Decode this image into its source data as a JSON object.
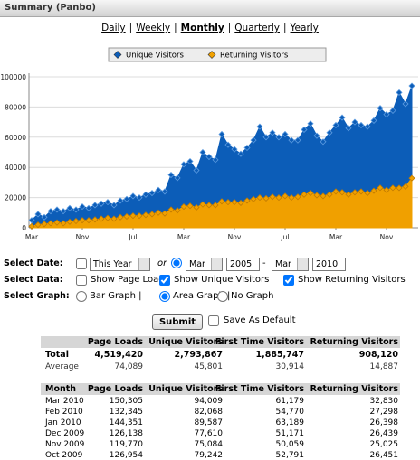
{
  "header": {
    "title": "Summary (Panbo)"
  },
  "period_links": {
    "items": [
      "Daily",
      "Weekly",
      "Monthly",
      "Quarterly",
      "Yearly"
    ],
    "separator": "|",
    "active": 2
  },
  "chart_data": {
    "type": "area",
    "categories": [
      "Mar",
      null,
      null,
      null,
      null,
      null,
      null,
      null,
      "Nov",
      null,
      null,
      null,
      null,
      null,
      null,
      null,
      "Jul",
      null,
      null,
      null,
      null,
      null,
      null,
      null,
      "Mar",
      null,
      null,
      null,
      null,
      null,
      null,
      null,
      "Nov",
      null,
      null,
      null,
      null,
      null,
      null,
      null,
      "Jul",
      null,
      null,
      null,
      null,
      null,
      null,
      null,
      "Mar",
      null,
      null,
      null,
      null,
      null,
      null,
      null,
      "Nov",
      null,
      null,
      null,
      null
    ],
    "series": [
      {
        "name": "Unique Visitors",
        "color": "#0c5db8",
        "values": [
          5000,
          9000,
          7000,
          11000,
          12000,
          11000,
          13000,
          12000,
          14000,
          13000,
          15000,
          16000,
          17000,
          15000,
          18000,
          19000,
          21000,
          20000,
          22000,
          23000,
          25000,
          24000,
          35000,
          33000,
          42000,
          44000,
          38000,
          50000,
          47000,
          45000,
          62000,
          55000,
          52000,
          49000,
          53000,
          58000,
          67000,
          60000,
          63000,
          60000,
          62000,
          58000,
          58000,
          65000,
          69000,
          61000,
          57000,
          63000,
          68000,
          73000,
          66000,
          70000,
          68000,
          67000,
          71000,
          79242,
          75084,
          77610,
          89587,
          82068,
          94009
        ]
      },
      {
        "name": "Returning Visitors",
        "color": "#f0a000",
        "values": [
          1000,
          2000,
          2500,
          3000,
          3500,
          3000,
          4000,
          4500,
          5000,
          5000,
          5500,
          6000,
          6500,
          6000,
          7000,
          7500,
          8000,
          8000,
          8500,
          9000,
          10000,
          9500,
          12000,
          11500,
          14000,
          14500,
          13500,
          15500,
          15000,
          15000,
          17500,
          17000,
          17000,
          16500,
          18000,
          19000,
          20000,
          19500,
          20500,
          20000,
          21000,
          20000,
          20500,
          22000,
          23000,
          21500,
          21000,
          22000,
          24000,
          23500,
          22000,
          23500,
          24000,
          23000,
          24500,
          26451,
          25025,
          26439,
          26398,
          27298,
          32830
        ]
      }
    ],
    "ylim": [
      0,
      100000
    ],
    "yticks": [
      0,
      20000,
      40000,
      60000,
      80000,
      100000
    ],
    "grid": true,
    "legend": "top"
  },
  "form": {
    "date_label": "Select Date:",
    "range_checked": false,
    "range_value": "This Year",
    "or": "or",
    "custom_checked": true,
    "from_month": "Mar",
    "from_year": "2005",
    "dash": "-",
    "to_month": "Mar",
    "to_year": "2010",
    "data_label": "Select Data:",
    "data_options": [
      {
        "label": "Show Page Loads",
        "checked": false
      },
      {
        "label": "Show Unique Visitors",
        "checked": true
      },
      {
        "label": "Show Returning Visitors",
        "checked": true
      }
    ],
    "graph_label": "Select Graph:",
    "graph_options": [
      {
        "label": "Bar Graph |",
        "checked": false
      },
      {
        "label": "Area Graph |",
        "checked": true
      },
      {
        "label": "No Graph",
        "checked": false
      }
    ],
    "submit": "Submit",
    "save_default": "Save As Default",
    "save_checked": false
  },
  "summary_table": {
    "header": [
      "Page Loads",
      "Unique Visitors",
      "First Time Visitors",
      "Returning Visitors"
    ],
    "rows": [
      [
        "Total",
        "4,519,420",
        "2,793,867",
        "1,885,747",
        "908,120"
      ],
      [
        "Average",
        "74,089",
        "45,801",
        "30,914",
        "14,887"
      ]
    ]
  },
  "monthly_table": {
    "header": [
      "Month",
      "Page Loads",
      "Unique Visitors",
      "First Time Visitors",
      "Returning Visitors"
    ],
    "rows": [
      [
        "Mar 2010",
        "150,305",
        "94,009",
        "61,179",
        "32,830"
      ],
      [
        "Feb 2010",
        "132,345",
        "82,068",
        "54,770",
        "27,298"
      ],
      [
        "Jan 2010",
        "144,351",
        "89,587",
        "63,189",
        "26,398"
      ],
      [
        "Dec 2009",
        "126,138",
        "77,610",
        "51,171",
        "26,439"
      ],
      [
        "Nov 2009",
        "119,770",
        "75,084",
        "50,059",
        "25,025"
      ],
      [
        "Oct 2009",
        "126,954",
        "79,242",
        "52,791",
        "26,451"
      ]
    ]
  }
}
